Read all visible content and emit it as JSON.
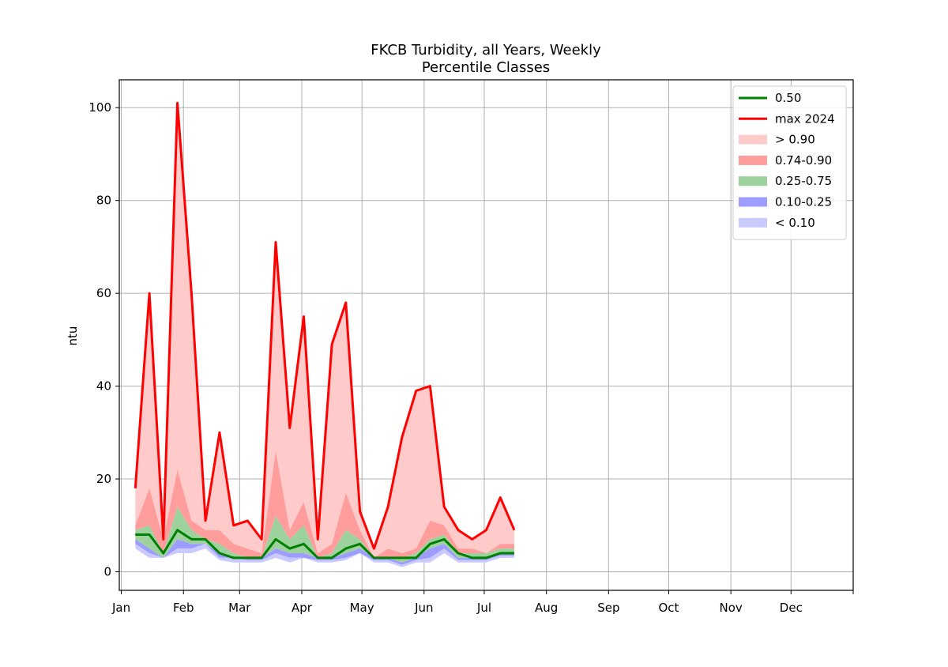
{
  "chart_data": {
    "type": "area",
    "title": "FKCB Turbidity, all Years, Weekly",
    "subtitle": "Percentile Classes",
    "xlabel": "",
    "ylabel": "ntu",
    "xlim": [
      0,
      366
    ],
    "ylim": [
      -4,
      106
    ],
    "grid": true,
    "legend_position": "top-right",
    "x_ticks": [
      {
        "value": 1,
        "label": "Jan"
      },
      {
        "value": 32,
        "label": "Feb"
      },
      {
        "value": 60,
        "label": "Mar"
      },
      {
        "value": 91,
        "label": "Apr"
      },
      {
        "value": 121,
        "label": "May"
      },
      {
        "value": 152,
        "label": "Jun"
      },
      {
        "value": 182,
        "label": "Jul"
      },
      {
        "value": 213,
        "label": "Aug"
      },
      {
        "value": 244,
        "label": "Sep"
      },
      {
        "value": 274,
        "label": "Oct"
      },
      {
        "value": 305,
        "label": "Nov"
      },
      {
        "value": 335,
        "label": "Dec"
      },
      {
        "value": 366,
        "label": ""
      }
    ],
    "y_ticks": [
      0,
      20,
      40,
      60,
      80,
      100
    ],
    "x": [
      8,
      15,
      22,
      29,
      36,
      43,
      50,
      57,
      64,
      71,
      78,
      85,
      92,
      99,
      106,
      113,
      120,
      127,
      134,
      141,
      148,
      155,
      162,
      169,
      176,
      183,
      190,
      197
    ],
    "bands": [
      {
        "name": "> 0.90",
        "color": "#ffcaca",
        "lower": [
          10,
          18,
          7,
          22,
          11,
          9,
          9,
          6,
          5,
          4,
          26,
          9,
          15,
          4,
          6,
          17,
          9,
          3,
          5,
          4,
          5,
          11,
          10,
          5,
          5,
          4,
          6,
          6
        ],
        "upper": [
          18,
          60,
          7,
          101,
          60,
          11,
          30,
          10,
          11,
          7,
          71,
          31,
          55,
          7,
          49,
          58,
          13,
          5,
          14,
          29,
          39,
          40,
          14,
          9,
          7,
          9,
          16,
          9
        ]
      },
      {
        "name": "0.74-0.90",
        "color": "#ff9d9d",
        "lower": [
          9,
          10,
          4,
          14,
          9,
          7,
          6,
          4,
          3,
          3,
          12,
          7,
          10,
          3,
          4,
          9,
          7,
          3,
          3,
          3,
          4,
          7,
          8,
          4,
          4,
          4,
          5,
          5
        ],
        "upper": [
          10,
          18,
          7,
          22,
          11,
          9,
          9,
          6,
          5,
          4,
          26,
          9,
          15,
          4,
          6,
          17,
          9,
          3,
          5,
          4,
          5,
          11,
          10,
          5,
          5,
          4,
          6,
          6
        ]
      },
      {
        "name": "0.25-0.75",
        "color": "#9dd19d",
        "lower": [
          7,
          5,
          3,
          7,
          6,
          6,
          4,
          3,
          3,
          3,
          5,
          4,
          4,
          3,
          3,
          4,
          5,
          3,
          3,
          2,
          3,
          5,
          6,
          3,
          3,
          3,
          4,
          4
        ],
        "upper": [
          9,
          10,
          4,
          14,
          9,
          7,
          6,
          4,
          3,
          3,
          12,
          7,
          10,
          3,
          4,
          9,
          7,
          3,
          3,
          3,
          4,
          7,
          8,
          4,
          4,
          4,
          5,
          5
        ]
      },
      {
        "name": "0.10-0.25",
        "color": "#9d9dff",
        "lower": [
          6,
          4,
          3,
          5,
          5,
          6,
          3,
          3,
          2.5,
          2.5,
          4,
          3,
          3,
          2.5,
          2.5,
          3,
          4,
          2.5,
          2.5,
          1.5,
          2.5,
          3,
          5,
          2.5,
          2.5,
          2.5,
          3.5,
          3.5
        ],
        "upper": [
          7,
          5,
          3,
          7,
          6,
          6,
          4,
          3,
          3,
          3,
          5,
          4,
          4,
          3,
          3,
          4,
          5,
          3,
          3,
          2,
          3,
          5,
          6,
          3,
          3,
          3,
          4,
          4
        ]
      },
      {
        "name": "< 0.10",
        "color": "#cacaff",
        "lower": [
          5,
          3,
          3,
          4,
          4,
          5,
          2.5,
          2,
          2,
          2,
          3,
          2,
          3,
          2,
          2,
          2.5,
          4,
          2,
          2,
          1,
          2,
          2,
          4,
          2,
          2,
          2,
          3,
          3
        ],
        "upper": [
          6,
          4,
          3,
          5,
          5,
          6,
          3,
          3,
          2.5,
          2.5,
          4,
          3,
          3,
          2.5,
          2.5,
          3,
          4,
          2.5,
          2.5,
          1.5,
          2.5,
          3,
          5,
          2.5,
          2.5,
          2.5,
          3.5,
          3.5
        ]
      }
    ],
    "lines": [
      {
        "name": "0.50",
        "color": "#008000",
        "values": [
          8,
          8,
          4,
          9,
          7,
          7,
          4,
          3,
          3,
          3,
          7,
          5,
          6,
          3,
          3,
          5,
          6,
          3,
          3,
          3,
          3,
          6,
          7,
          4,
          3,
          3,
          4,
          4
        ]
      },
      {
        "name": "max 2024",
        "color": "#ff0000",
        "values": [
          18,
          60,
          7,
          101,
          60,
          11,
          30,
          10,
          11,
          7,
          71,
          31,
          55,
          7,
          49,
          58,
          13,
          5,
          14,
          29,
          39,
          40,
          14,
          9,
          7,
          9,
          16,
          9
        ]
      }
    ],
    "legend_order": [
      "0.50",
      "max 2024",
      "> 0.90",
      "0.74-0.90",
      "0.25-0.75",
      "0.10-0.25",
      "< 0.10"
    ]
  }
}
